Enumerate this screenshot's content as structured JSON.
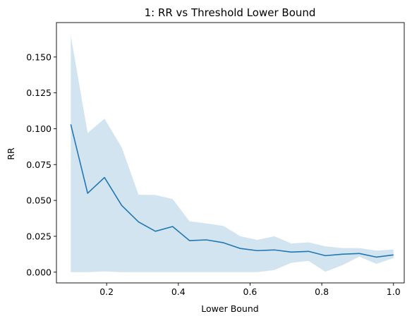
{
  "chart_data": {
    "type": "line",
    "title": "1: RR vs Threshold Lower Bound",
    "xlabel": "Lower Bound",
    "ylabel": "RR",
    "xlim": [
      0.06,
      1.03
    ],
    "ylim": [
      -0.0075,
      0.174
    ],
    "xticks": [
      0.2,
      0.4,
      0.6,
      0.8,
      1.0
    ],
    "xtick_labels": [
      "0.2",
      "0.4",
      "0.6",
      "0.8",
      "1.0"
    ],
    "yticks": [
      0.0,
      0.025,
      0.05,
      0.075,
      0.1,
      0.125,
      0.15
    ],
    "ytick_labels": [
      "0.000",
      "0.025",
      "0.050",
      "0.075",
      "0.100",
      "0.125",
      "0.150"
    ],
    "grid": false,
    "line_color": "#1f77b4",
    "band_color": "#1f77b4",
    "band_opacity": 0.2,
    "x": [
      0.1,
      0.147,
      0.194,
      0.242,
      0.289,
      0.336,
      0.384,
      0.431,
      0.478,
      0.526,
      0.573,
      0.62,
      0.668,
      0.715,
      0.763,
      0.81,
      0.857,
      0.905,
      0.952,
      1.0
    ],
    "series": [
      {
        "values": [
          0.103,
          0.055,
          0.066,
          0.0465,
          0.035,
          0.0285,
          0.0318,
          0.022,
          0.0225,
          0.0205,
          0.0165,
          0.015,
          0.0155,
          0.014,
          0.0145,
          0.0115,
          0.0125,
          0.013,
          0.0105,
          0.012
        ],
        "upper": [
          0.165,
          0.097,
          0.107,
          0.087,
          0.054,
          0.0538,
          0.051,
          0.0355,
          0.034,
          0.0322,
          0.025,
          0.0225,
          0.025,
          0.02,
          0.0208,
          0.018,
          0.0168,
          0.0168,
          0.015,
          0.0158
        ],
        "lower": [
          0.0,
          0.0,
          0.0005,
          0.0,
          0.0,
          0.0,
          0.0,
          0.0,
          0.0,
          0.0,
          0.0,
          0.0,
          0.0015,
          0.0065,
          0.0078,
          0.0003,
          0.0048,
          0.0108,
          0.0058,
          0.0098
        ]
      }
    ]
  }
}
